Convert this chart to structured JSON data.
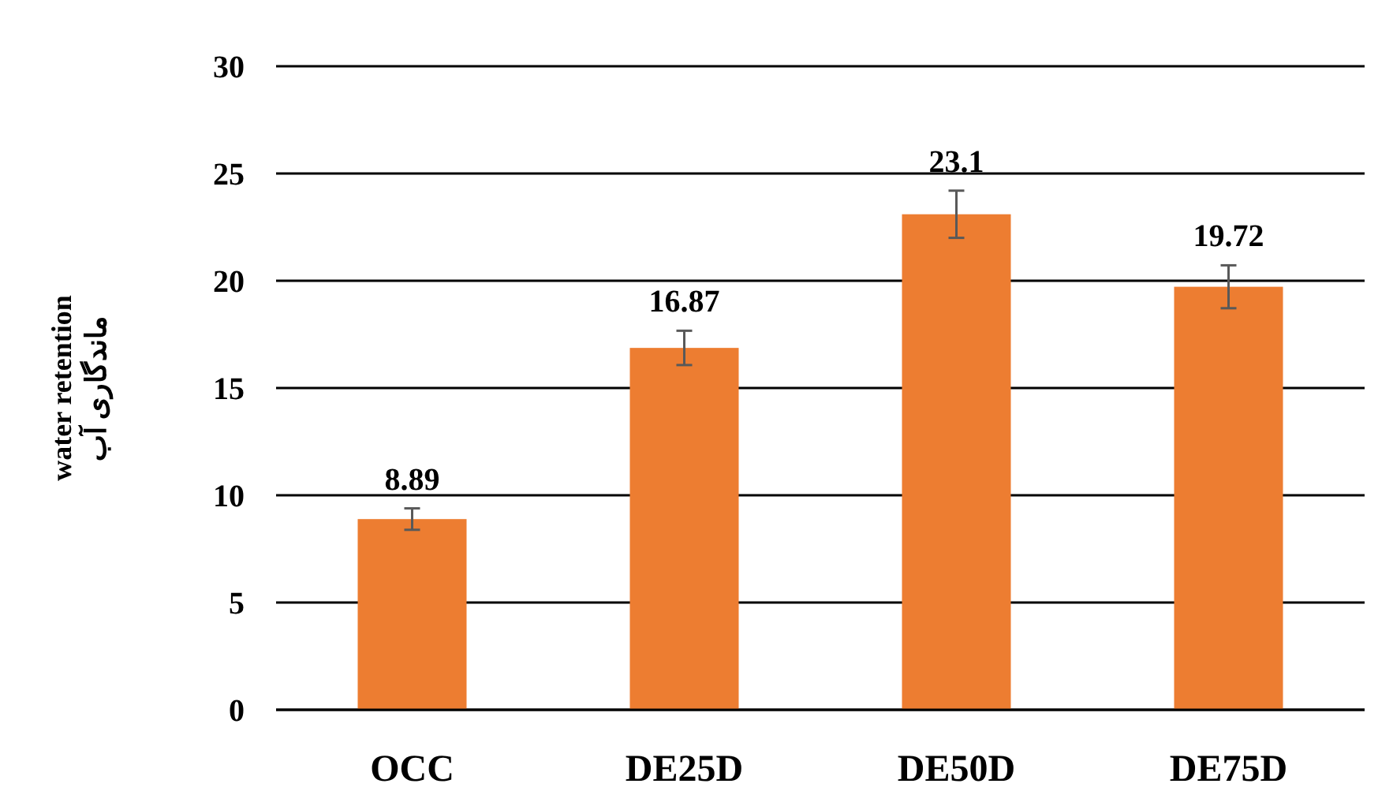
{
  "chart_data": {
    "type": "bar",
    "ylabel": "water retention\nماندگاری آب",
    "categories": [
      "OCC",
      "DE25D",
      "DE50D",
      "DE75D"
    ],
    "values": [
      8.89,
      16.87,
      23.1,
      19.72
    ],
    "errors": [
      0.5,
      0.8,
      1.1,
      1.0
    ],
    "color": "#ed7d31",
    "ylim": [
      0,
      30
    ],
    "yticks": [
      0,
      5,
      10,
      15,
      20,
      25,
      30
    ],
    "grid": "y",
    "data_labels": true
  }
}
